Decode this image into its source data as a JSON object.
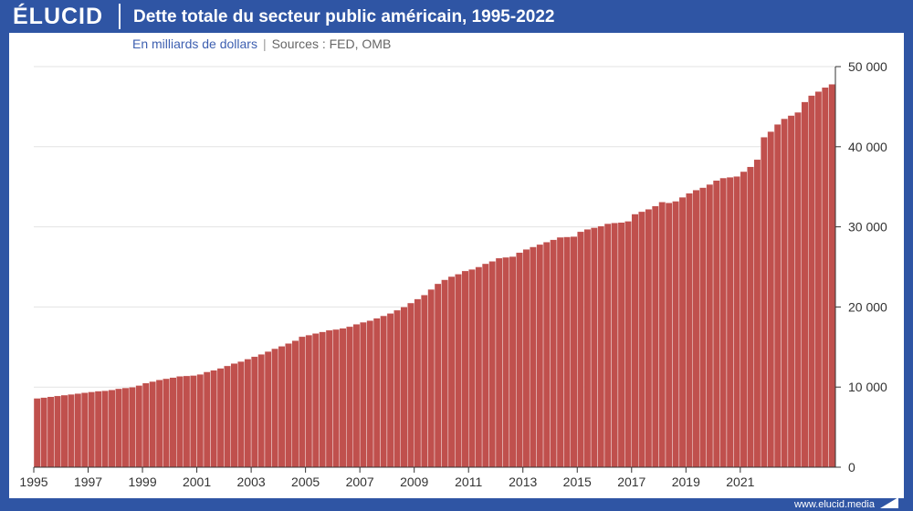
{
  "header": {
    "logo": "ÉLUCID",
    "title": "Dette totale du secteur public américain, 1995-2022"
  },
  "subtitle": {
    "unit": "En milliards de dollars",
    "separator": "|",
    "sources": "Sources : FED, OMB"
  },
  "footer": {
    "url": "www.elucid.media"
  },
  "colors": {
    "brand": "#2f55a4",
    "bar": "#c0504d",
    "bar_edge": "#ffffff",
    "grid": "#e3e3e3"
  },
  "chart_data": {
    "type": "bar",
    "title": "Dette totale du secteur public américain, 1995-2022",
    "ylabel": "En milliards de dollars",
    "xlabel": "",
    "frequency": "quarterly",
    "x_start": "1995 Q1",
    "ylim": [
      0,
      50000
    ],
    "yticks": [
      0,
      10000,
      20000,
      30000,
      40000,
      50000
    ],
    "ytick_labels": [
      "0",
      "10 000",
      "20 000",
      "30 000",
      "40 000",
      "50 000"
    ],
    "xtick_labels": [
      "1995",
      "1997",
      "1999",
      "2001",
      "2003",
      "2005",
      "2007",
      "2009",
      "2011",
      "2013",
      "2015",
      "2017",
      "2019",
      "2021"
    ],
    "grid": true,
    "y_axis_side": "right",
    "values": [
      8600,
      8700,
      8800,
      8900,
      9000,
      9100,
      9200,
      9300,
      9400,
      9500,
      9550,
      9650,
      9800,
      9900,
      10000,
      10200,
      10500,
      10700,
      10900,
      11050,
      11200,
      11350,
      11400,
      11450,
      11600,
      11900,
      12100,
      12350,
      12650,
      12950,
      13200,
      13500,
      13800,
      14100,
      14450,
      14800,
      15100,
      15450,
      15800,
      16300,
      16500,
      16700,
      16900,
      17100,
      17200,
      17350,
      17550,
      17850,
      18100,
      18300,
      18600,
      18900,
      19200,
      19600,
      20000,
      20500,
      21000,
      21500,
      22200,
      22900,
      23400,
      23800,
      24100,
      24500,
      24700,
      25000,
      25400,
      25700,
      26100,
      26200,
      26300,
      26800,
      27200,
      27500,
      27800,
      28100,
      28400,
      28700,
      28750,
      28800,
      29400,
      29700,
      29900,
      30100,
      30400,
      30500,
      30550,
      30700,
      31600,
      31900,
      32200,
      32600,
      33100,
      33000,
      33200,
      33700,
      34200,
      34600,
      34900,
      35300,
      35800,
      36100,
      36200,
      36300,
      36900,
      37500,
      38400,
      41200,
      41900,
      42800,
      43500,
      43900,
      44300,
      45600,
      46400,
      46900,
      47400,
      47800
    ]
  }
}
